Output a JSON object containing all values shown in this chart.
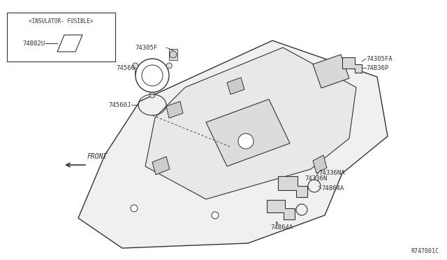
{
  "bg_color": "#ffffff",
  "line_color": "#333333",
  "text_color": "#333333",
  "title_ref": "R747001C",
  "labels": {
    "insulator_box_title": "<INSULATOR- FUSIBLE>",
    "insulator_part": "74B82U",
    "part1_top": "74305F",
    "part2_circle": "74560",
    "part2_oval": "74560J",
    "part3_top_right": "74305FA",
    "part4_top_right2": "74B36P",
    "part5_bottom1": "74336NA",
    "part6_bottom2": "74336N",
    "part7_bottom3a": "74864A",
    "part8_bottom3b": "74864A",
    "front_label": "FRONT"
  },
  "figsize": [
    6.4,
    3.72
  ],
  "dpi": 100
}
